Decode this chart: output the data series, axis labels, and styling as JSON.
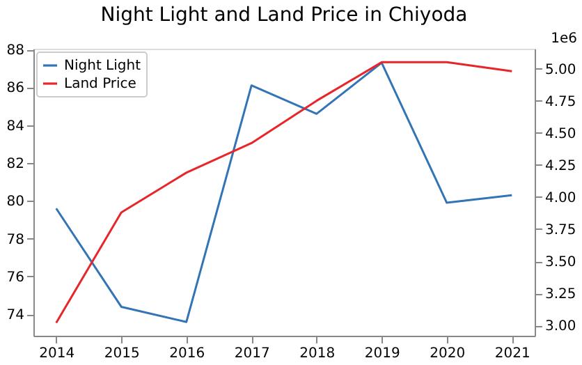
{
  "chart_data": {
    "type": "line",
    "title": "Night Light and Land Price in Chiyoda",
    "x": [
      2014,
      2015,
      2016,
      2017,
      2018,
      2019,
      2020,
      2021
    ],
    "xlim": [
      2013.65,
      2021.35
    ],
    "xticks": [
      2014,
      2015,
      2016,
      2017,
      2018,
      2019,
      2020,
      2021
    ],
    "ylim": [
      72.87,
      88.04
    ],
    "yticks": [
      74,
      76,
      78,
      80,
      82,
      84,
      86,
      88
    ],
    "y2lim": [
      2.92,
      5.155
    ],
    "y2label": "1e6",
    "y2ticks": [
      {
        "value": 3,
        "label": "3.00"
      },
      {
        "value": 3.25,
        "label": "3.25"
      },
      {
        "value": 3.5,
        "label": "3.50"
      },
      {
        "value": 3.75,
        "label": "3.75"
      },
      {
        "value": 4,
        "label": "4.00"
      },
      {
        "value": 4.25,
        "label": "4.25"
      },
      {
        "value": 4.5,
        "label": "4.50"
      },
      {
        "value": 4.75,
        "label": "4.75"
      },
      {
        "value": 5,
        "label": "5.00"
      }
    ],
    "series": [
      {
        "name": "Night Light",
        "color": "#3274b5",
        "values": [
          79.6,
          74.4,
          73.6,
          86.1,
          84.6,
          87.3,
          79.9,
          80.3
        ]
      },
      {
        "name": "Land Price",
        "color": "#e8262a",
        "axis": "y2",
        "values": [
          3.02,
          3.88,
          4.19,
          4.42,
          4.75,
          5.05,
          5.05,
          4.98
        ]
      }
    ],
    "grid": false,
    "legend": "top left",
    "marker": "none",
    "line_style": "solid"
  }
}
